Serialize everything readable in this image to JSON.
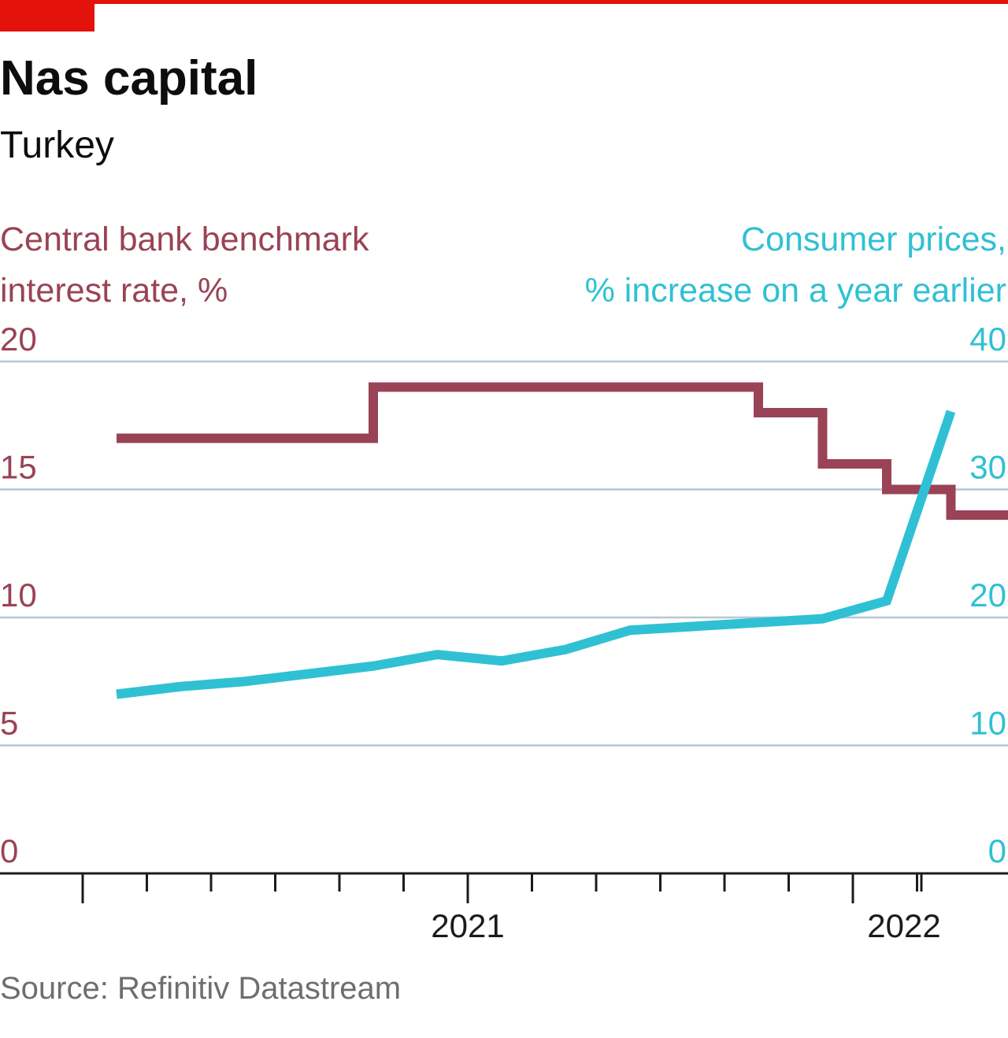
{
  "colors": {
    "accent_red": "#e3120b",
    "rate_series": "#9a4356",
    "cpi_series": "#2fc1d3",
    "gridline": "#b7c6d3",
    "axis": "#1b1b1b",
    "title": "#0d0d0d",
    "source": "#6e6e6e"
  },
  "chart_data": {
    "type": "line",
    "title": "Nas capital",
    "subtitle": "Turkey",
    "source": "Source: Refinitiv Datastream",
    "grid": true,
    "x_tick_labels": [
      "2021",
      "2022"
    ],
    "x_months": [
      "2020-11",
      "2020-12",
      "2021-01",
      "2021-02",
      "2021-03",
      "2021-04",
      "2021-05",
      "2021-06",
      "2021-07",
      "2021-08",
      "2021-09",
      "2021-10",
      "2021-11",
      "2021-12",
      "2022-01"
    ],
    "y_left": {
      "label": [
        "Central bank benchmark",
        "interest rate, %"
      ],
      "ticks": [
        "0",
        "5",
        "10",
        "15",
        "20"
      ],
      "ylim": [
        0,
        20
      ]
    },
    "y_right": {
      "label": [
        "Consumer prices,",
        "% increase on a year earlier"
      ],
      "ticks": [
        "0",
        "10",
        "20",
        "30",
        "40"
      ],
      "ylim": [
        0,
        40
      ]
    },
    "series": [
      {
        "axis": "left",
        "style": "step",
        "points": [
          {
            "x": "2020-11",
            "y": 17.0
          },
          {
            "x": "2020-12",
            "y": 17.0
          },
          {
            "x": "2021-01",
            "y": 17.0
          },
          {
            "x": "2021-02",
            "y": 17.0
          },
          {
            "x": "2021-03",
            "y": 19.0
          },
          {
            "x": "2021-04",
            "y": 19.0
          },
          {
            "x": "2021-05",
            "y": 19.0
          },
          {
            "x": "2021-06",
            "y": 19.0
          },
          {
            "x": "2021-07",
            "y": 19.0
          },
          {
            "x": "2021-08",
            "y": 19.0
          },
          {
            "x": "2021-09",
            "y": 18.0
          },
          {
            "x": "2021-10",
            "y": 16.0
          },
          {
            "x": "2021-11",
            "y": 15.0
          },
          {
            "x": "2021-12",
            "y": 14.0
          },
          {
            "x": "2022-01",
            "y": 14.0
          }
        ]
      },
      {
        "axis": "right",
        "style": "line",
        "points": [
          {
            "x": "2020-11",
            "y": 14.0
          },
          {
            "x": "2020-12",
            "y": 14.6
          },
          {
            "x": "2021-01",
            "y": 15.0
          },
          {
            "x": "2021-02",
            "y": 15.6
          },
          {
            "x": "2021-03",
            "y": 16.2
          },
          {
            "x": "2021-04",
            "y": 17.1
          },
          {
            "x": "2021-05",
            "y": 16.6
          },
          {
            "x": "2021-06",
            "y": 17.5
          },
          {
            "x": "2021-07",
            "y": 19.0
          },
          {
            "x": "2021-08",
            "y": 19.3
          },
          {
            "x": "2021-09",
            "y": 19.6
          },
          {
            "x": "2021-10",
            "y": 19.9
          },
          {
            "x": "2021-11",
            "y": 21.3
          },
          {
            "x": "2021-12",
            "y": 36.1
          }
        ]
      }
    ]
  }
}
